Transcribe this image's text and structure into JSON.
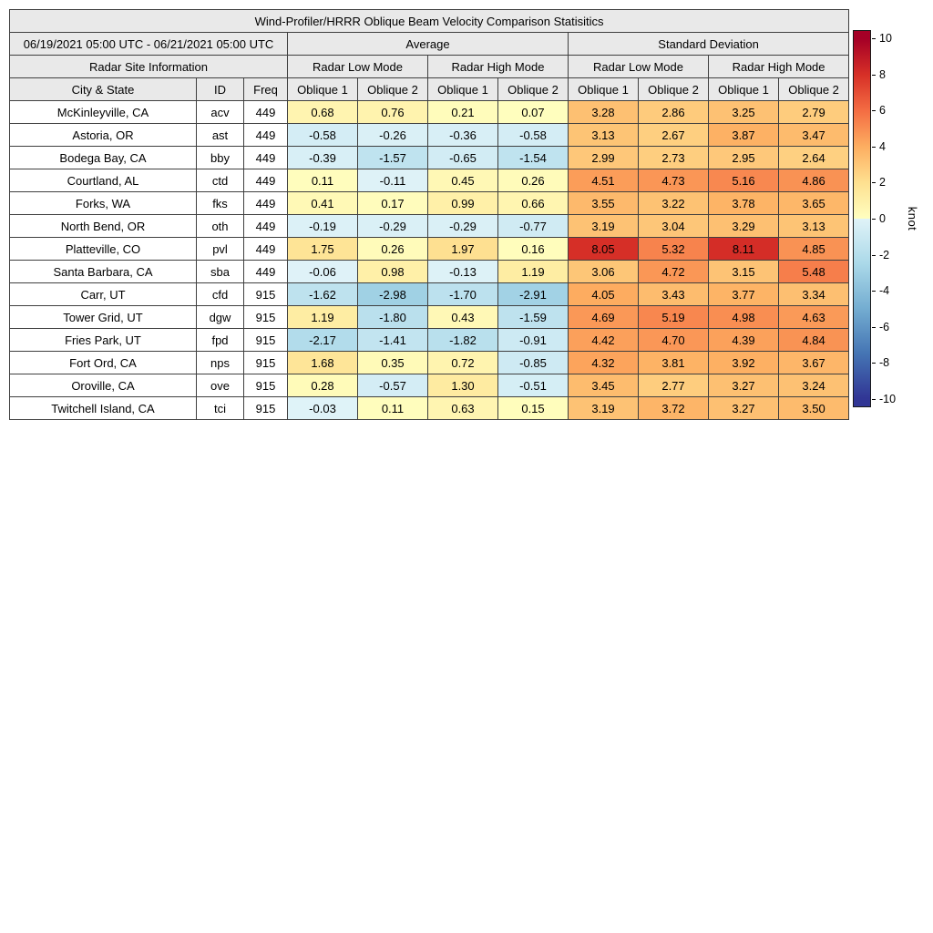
{
  "chart_data": {
    "type": "heatmap",
    "title": "Wind-Profiler/HRRR Oblique Beam Velocity Comparison Statisitics",
    "header": {
      "date_range": "06/19/2021 05:00 UTC - 06/21/2021 05:00 UTC",
      "average": "Average",
      "standard_deviation": "Standard Deviation",
      "site_info": "Radar Site Information",
      "low_mode": "Radar Low Mode",
      "high_mode": "Radar High Mode",
      "city": "City & State",
      "id": "ID",
      "freq": "Freq",
      "oblique1": "Oblique 1",
      "oblique2": "Oblique 2"
    },
    "columns": [
      "Average Radar Low Mode Oblique 1",
      "Average Radar Low Mode Oblique 2",
      "Average Radar High Mode Oblique 1",
      "Average Radar High Mode Oblique 2",
      "Standard Deviation Radar Low Mode Oblique 1",
      "Standard Deviation Radar Low Mode Oblique 2",
      "Standard Deviation Radar High Mode Oblique 1",
      "Standard Deviation Radar High Mode Oblique 2"
    ],
    "rows": [
      {
        "city": "McKinleyville, CA",
        "id": "acv",
        "freq": "449",
        "values": [
          0.68,
          0.76,
          0.21,
          0.07,
          3.28,
          2.86,
          3.25,
          2.79
        ]
      },
      {
        "city": "Astoria, OR",
        "id": "ast",
        "freq": "449",
        "values": [
          -0.58,
          -0.26,
          -0.36,
          -0.58,
          3.13,
          2.67,
          3.87,
          3.47
        ]
      },
      {
        "city": "Bodega Bay, CA",
        "id": "bby",
        "freq": "449",
        "values": [
          -0.39,
          -1.57,
          -0.65,
          -1.54,
          2.99,
          2.73,
          2.95,
          2.64
        ]
      },
      {
        "city": "Courtland, AL",
        "id": "ctd",
        "freq": "449",
        "values": [
          0.11,
          -0.11,
          0.45,
          0.26,
          4.51,
          4.73,
          5.16,
          4.86
        ]
      },
      {
        "city": "Forks, WA",
        "id": "fks",
        "freq": "449",
        "values": [
          0.41,
          0.17,
          0.99,
          0.66,
          3.55,
          3.22,
          3.78,
          3.65
        ]
      },
      {
        "city": "North Bend, OR",
        "id": "oth",
        "freq": "449",
        "values": [
          -0.19,
          -0.29,
          -0.29,
          -0.77,
          3.19,
          3.04,
          3.29,
          3.13
        ]
      },
      {
        "city": "Platteville, CO",
        "id": "pvl",
        "freq": "449",
        "values": [
          1.75,
          0.26,
          1.97,
          0.16,
          8.05,
          5.32,
          8.11,
          4.85
        ]
      },
      {
        "city": "Santa Barbara, CA",
        "id": "sba",
        "freq": "449",
        "values": [
          -0.06,
          0.98,
          -0.13,
          1.19,
          3.06,
          4.72,
          3.15,
          5.48
        ]
      },
      {
        "city": "Carr, UT",
        "id": "cfd",
        "freq": "915",
        "values": [
          -1.62,
          -2.98,
          -1.7,
          -2.91,
          4.05,
          3.43,
          3.77,
          3.34
        ]
      },
      {
        "city": "Tower Grid, UT",
        "id": "dgw",
        "freq": "915",
        "values": [
          1.19,
          -1.8,
          0.43,
          -1.59,
          4.69,
          5.19,
          4.98,
          4.63
        ]
      },
      {
        "city": "Fries Park, UT",
        "id": "fpd",
        "freq": "915",
        "values": [
          -2.17,
          -1.41,
          -1.82,
          -0.91,
          4.42,
          4.7,
          4.39,
          4.84
        ]
      },
      {
        "city": "Fort Ord, CA",
        "id": "nps",
        "freq": "915",
        "values": [
          1.68,
          0.35,
          0.72,
          -0.85,
          4.32,
          3.81,
          3.92,
          3.67
        ]
      },
      {
        "city": "Oroville, CA",
        "id": "ove",
        "freq": "915",
        "values": [
          0.28,
          -0.57,
          1.3,
          -0.51,
          3.45,
          2.77,
          3.27,
          3.24
        ]
      },
      {
        "city": "Twitchell Island, CA",
        "id": "tci",
        "freq": "915",
        "values": [
          -0.03,
          0.11,
          0.63,
          0.15,
          3.19,
          3.72,
          3.27,
          3.5
        ]
      }
    ],
    "colorbar": {
      "label": "knot",
      "min": -10,
      "max": 10,
      "ticks": [
        10,
        8,
        6,
        4,
        2,
        0,
        -2,
        -4,
        -6,
        -8,
        -10
      ],
      "positive_stops": [
        "#ffffc0",
        "#fee090",
        "#fdae61",
        "#f46d43",
        "#d73027",
        "#a50026"
      ],
      "negative_stops": [
        "#e0f3f8",
        "#abd9e9",
        "#74add1",
        "#4575b4",
        "#313695"
      ]
    }
  }
}
